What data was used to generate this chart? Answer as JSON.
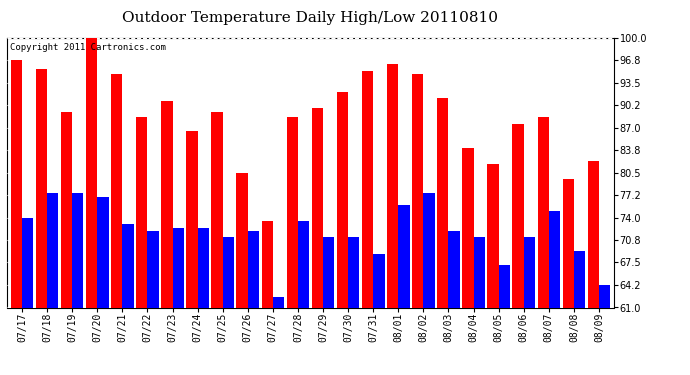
{
  "title": "Outdoor Temperature Daily High/Low 20110810",
  "copyright": "Copyright 2011 Cartronics.com",
  "dates": [
    "07/17",
    "07/18",
    "07/19",
    "07/20",
    "07/21",
    "07/22",
    "07/23",
    "07/24",
    "07/25",
    "07/26",
    "07/27",
    "07/28",
    "07/29",
    "07/30",
    "07/31",
    "08/01",
    "08/02",
    "08/03",
    "08/04",
    "08/05",
    "08/06",
    "08/07",
    "08/08",
    "08/09"
  ],
  "highs": [
    96.8,
    95.5,
    89.2,
    100.0,
    94.8,
    88.5,
    90.8,
    86.5,
    89.2,
    80.5,
    73.5,
    88.5,
    89.8,
    92.2,
    95.2,
    96.2,
    94.8,
    91.2,
    84.0,
    81.8,
    87.5,
    88.5,
    79.5,
    82.2
  ],
  "lows": [
    74.0,
    77.5,
    77.5,
    77.0,
    73.0,
    72.0,
    72.5,
    72.5,
    71.2,
    72.0,
    62.5,
    73.5,
    71.2,
    71.2,
    68.8,
    75.8,
    77.5,
    72.0,
    71.2,
    67.2,
    71.2,
    75.0,
    69.2,
    64.2
  ],
  "high_color": "#ff0000",
  "low_color": "#0000ff",
  "bg_color": "#ffffff",
  "plot_bg_color": "#ffffff",
  "ylim_min": 61.0,
  "ylim_max": 100.0,
  "yticks": [
    61.0,
    64.2,
    67.5,
    70.8,
    74.0,
    77.2,
    80.5,
    83.8,
    87.0,
    90.2,
    93.5,
    96.8,
    100.0
  ],
  "bar_width": 0.45,
  "title_fontsize": 11,
  "tick_fontsize": 7,
  "copyright_fontsize": 6.5
}
